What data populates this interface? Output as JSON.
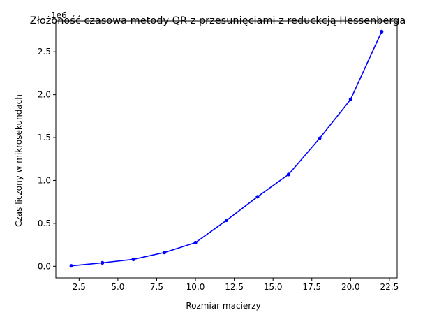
{
  "chart_data": {
    "type": "line",
    "title": "Złożoność czasowa metody QR z przesunięciami z reduckcją Hessenberga",
    "xlabel": "Rozmiar macierzy",
    "ylabel": "Czas liczony w mikrosekundach",
    "y_offset_label": "1e6",
    "xlim": [
      1.0,
      23.0
    ],
    "ylim": [
      -0.136,
      2.86
    ],
    "x_ticks": [
      2.5,
      5.0,
      7.5,
      10.0,
      12.5,
      15.0,
      17.5,
      20.0,
      22.5
    ],
    "x_tick_labels": [
      "2.5",
      "5.0",
      "7.5",
      "10.0",
      "12.5",
      "15.0",
      "17.5",
      "20.0",
      "22.5"
    ],
    "y_ticks": [
      0.0,
      0.5,
      1.0,
      1.5,
      2.0,
      2.5
    ],
    "y_tick_labels": [
      "0.0",
      "0.5",
      "1.0",
      "1.5",
      "2.0",
      "2.5"
    ],
    "grid": false,
    "legend": "none",
    "color": "#0000ff",
    "series": [
      {
        "x": [
          2,
          4,
          6,
          8,
          10,
          12,
          14,
          16,
          18,
          20,
          22
        ],
        "y": [
          0.005,
          0.04,
          0.08,
          0.16,
          0.275,
          0.535,
          0.81,
          1.07,
          1.49,
          1.945,
          2.735
        ]
      }
    ]
  }
}
